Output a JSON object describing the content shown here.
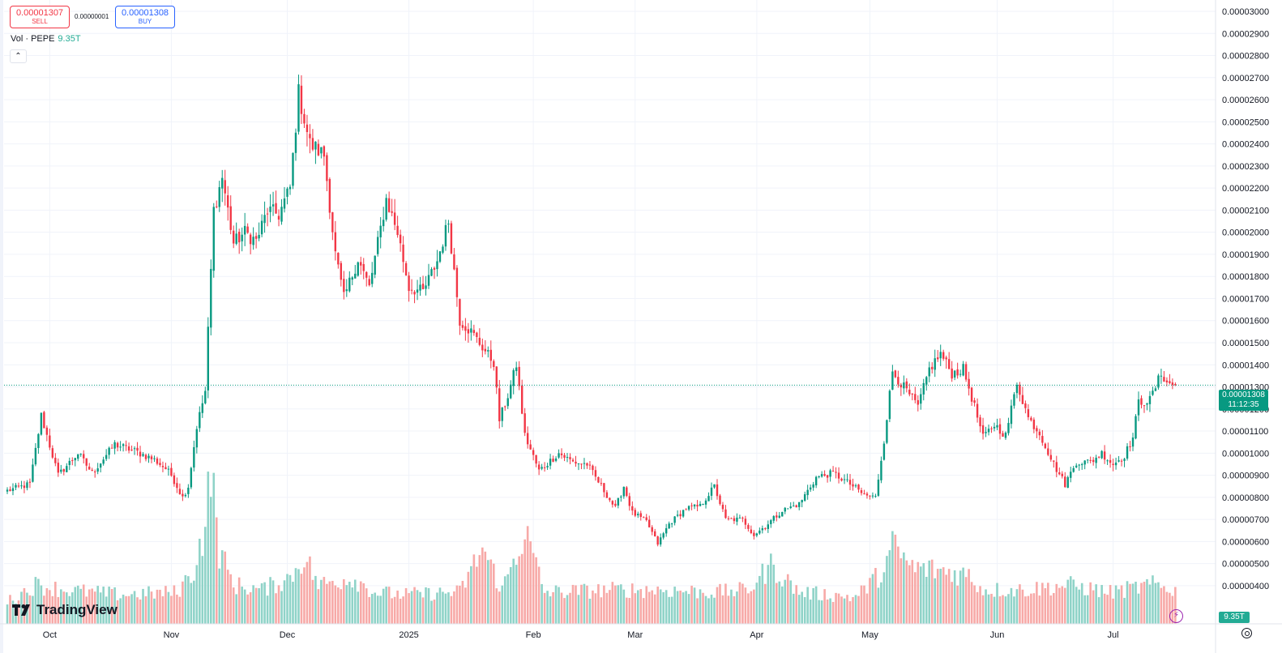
{
  "trade": {
    "sell_price": "0.00001307",
    "sell_label": "SELL",
    "spread": "0.00000001",
    "buy_price": "0.00001308",
    "buy_label": "BUY"
  },
  "volume_legend": {
    "label": "Vol · PEPE",
    "value": "9.35T"
  },
  "price_tag": {
    "price": "0.00001308",
    "countdown": "11:12:35"
  },
  "volume_tag": "9.35T",
  "brand": "TradingView",
  "colors": {
    "up": "#089981",
    "down": "#f23645",
    "up_volume": "#8fd3c8",
    "down_volume": "#f7a9a7",
    "grid": "#f0f3fa",
    "price_line": "#089981"
  },
  "chart_data": {
    "type": "candlestick",
    "symbol": "PEPE",
    "y_axis": {
      "min": 3.3e-06,
      "max": 3e-05,
      "ticks": [
        "0.00003000",
        "0.00002900",
        "0.00002800",
        "0.00002700",
        "0.00002600",
        "0.00002500",
        "0.00002400",
        "0.00002300",
        "0.00002200",
        "0.00002100",
        "0.00002000",
        "0.00001900",
        "0.00001800",
        "0.00001700",
        "0.00001600",
        "0.00001500",
        "0.00001400",
        "0.00001300",
        "0.00001200",
        "0.00001100",
        "0.00001000",
        "0.00000900",
        "0.00000800",
        "0.00000700",
        "0.00000600",
        "0.00000500",
        "0.00000400"
      ]
    },
    "x_axis": {
      "labels": [
        "Oct",
        "Nov",
        "Dec",
        "2025",
        "Feb",
        "Mar",
        "Apr",
        "May",
        "Jun",
        "Jul"
      ]
    },
    "last_price": 1.308e-05,
    "keypoints": [
      {
        "x": 0,
        "close": 8.3
      },
      {
        "x": 8,
        "close": 8.6
      },
      {
        "x": 12,
        "close": 11.7
      },
      {
        "x": 18,
        "close": 9.0
      },
      {
        "x": 25,
        "close": 10.0
      },
      {
        "x": 30,
        "close": 9.1
      },
      {
        "x": 38,
        "close": 10.4
      },
      {
        "x": 45,
        "close": 10.1
      },
      {
        "x": 52,
        "close": 9.7
      },
      {
        "x": 56,
        "close": 9.3
      },
      {
        "x": 58,
        "close": 9.0
      },
      {
        "x": 62,
        "close": 8.0
      },
      {
        "x": 64,
        "close": 8.5
      },
      {
        "x": 67,
        "close": 11.2
      },
      {
        "x": 70,
        "close": 12.8
      },
      {
        "x": 73,
        "close": 21.0
      },
      {
        "x": 76,
        "close": 22.5
      },
      {
        "x": 80,
        "close": 19.5
      },
      {
        "x": 84,
        "close": 20.0
      },
      {
        "x": 88,
        "close": 19.6
      },
      {
        "x": 92,
        "close": 21.0
      },
      {
        "x": 96,
        "close": 20.8
      },
      {
        "x": 100,
        "close": 22.0
      },
      {
        "x": 103,
        "close": 26.3
      },
      {
        "x": 107,
        "close": 24.0
      },
      {
        "x": 112,
        "close": 23.5
      },
      {
        "x": 116,
        "close": 19.0
      },
      {
        "x": 119,
        "close": 17.0
      },
      {
        "x": 124,
        "close": 18.8
      },
      {
        "x": 128,
        "close": 17.5
      },
      {
        "x": 134,
        "close": 21.5
      },
      {
        "x": 138,
        "close": 20.0
      },
      {
        "x": 142,
        "close": 17.5
      },
      {
        "x": 147,
        "close": 17.3
      },
      {
        "x": 152,
        "close": 18.7
      },
      {
        "x": 156,
        "close": 20.5
      },
      {
        "x": 160,
        "close": 16.0
      },
      {
        "x": 164,
        "close": 15.5
      },
      {
        "x": 168,
        "close": 14.8
      },
      {
        "x": 172,
        "close": 14.1
      },
      {
        "x": 174,
        "close": 11.5
      },
      {
        "x": 177,
        "close": 12.6
      },
      {
        "x": 180,
        "close": 14.0
      },
      {
        "x": 183,
        "close": 10.8
      },
      {
        "x": 188,
        "close": 9.2
      },
      {
        "x": 195,
        "close": 10.0
      },
      {
        "x": 200,
        "close": 9.6
      },
      {
        "x": 205,
        "close": 9.5
      },
      {
        "x": 210,
        "close": 8.5
      },
      {
        "x": 215,
        "close": 7.5
      },
      {
        "x": 218,
        "close": 8.5
      },
      {
        "x": 221,
        "close": 7.3
      },
      {
        "x": 226,
        "close": 6.9
      },
      {
        "x": 230,
        "close": 5.9
      },
      {
        "x": 234,
        "close": 6.8
      },
      {
        "x": 240,
        "close": 7.5
      },
      {
        "x": 245,
        "close": 7.6
      },
      {
        "x": 250,
        "close": 8.5
      },
      {
        "x": 254,
        "close": 7.0
      },
      {
        "x": 260,
        "close": 7.0
      },
      {
        "x": 264,
        "close": 6.3
      },
      {
        "x": 268,
        "close": 6.7
      },
      {
        "x": 274,
        "close": 7.4
      },
      {
        "x": 280,
        "close": 7.7
      },
      {
        "x": 286,
        "close": 8.9
      },
      {
        "x": 292,
        "close": 9.1
      },
      {
        "x": 298,
        "close": 8.6
      },
      {
        "x": 303,
        "close": 8.1
      },
      {
        "x": 307,
        "close": 8.0
      },
      {
        "x": 310,
        "close": 10.6
      },
      {
        "x": 313,
        "close": 13.7
      },
      {
        "x": 318,
        "close": 12.8
      },
      {
        "x": 322,
        "close": 12.1
      },
      {
        "x": 326,
        "close": 13.8
      },
      {
        "x": 330,
        "close": 14.5
      },
      {
        "x": 334,
        "close": 13.6
      },
      {
        "x": 338,
        "close": 13.8
      },
      {
        "x": 342,
        "close": 12.1
      },
      {
        "x": 345,
        "close": 10.7
      },
      {
        "x": 349,
        "close": 11.3
      },
      {
        "x": 353,
        "close": 10.8
      },
      {
        "x": 357,
        "close": 13.2
      },
      {
        "x": 361,
        "close": 11.6
      },
      {
        "x": 365,
        "close": 10.9
      },
      {
        "x": 370,
        "close": 9.5
      },
      {
        "x": 374,
        "close": 8.6
      },
      {
        "x": 378,
        "close": 9.6
      },
      {
        "x": 383,
        "close": 9.6
      },
      {
        "x": 387,
        "close": 10.0
      },
      {
        "x": 391,
        "close": 9.5
      },
      {
        "x": 395,
        "close": 9.9
      },
      {
        "x": 398,
        "close": 10.7
      },
      {
        "x": 400,
        "close": 12.3
      },
      {
        "x": 404,
        "close": 12.4
      },
      {
        "x": 408,
        "close": 13.6
      },
      {
        "x": 411,
        "close": 13.1
      },
      {
        "x": 413,
        "close": 13.08
      }
    ],
    "volume_keypoints": [
      {
        "x": 0,
        "v": 0.9
      },
      {
        "x": 10,
        "v": 1.6
      },
      {
        "x": 20,
        "v": 1.4
      },
      {
        "x": 40,
        "v": 1.2
      },
      {
        "x": 60,
        "v": 1.3
      },
      {
        "x": 66,
        "v": 2.2
      },
      {
        "x": 70,
        "v": 4.1
      },
      {
        "x": 72,
        "v": 6.4
      },
      {
        "x": 75,
        "v": 3.0
      },
      {
        "x": 80,
        "v": 1.6
      },
      {
        "x": 90,
        "v": 1.4
      },
      {
        "x": 100,
        "v": 1.9
      },
      {
        "x": 105,
        "v": 2.8
      },
      {
        "x": 110,
        "v": 1.6
      },
      {
        "x": 122,
        "v": 1.9
      },
      {
        "x": 130,
        "v": 1.3
      },
      {
        "x": 140,
        "v": 1.2
      },
      {
        "x": 160,
        "v": 1.3
      },
      {
        "x": 168,
        "v": 3.1
      },
      {
        "x": 175,
        "v": 1.4
      },
      {
        "x": 183,
        "v": 3.8
      },
      {
        "x": 190,
        "v": 1.3
      },
      {
        "x": 215,
        "v": 1.4
      },
      {
        "x": 230,
        "v": 1.4
      },
      {
        "x": 250,
        "v": 1.3
      },
      {
        "x": 262,
        "v": 1.4
      },
      {
        "x": 270,
        "v": 2.4
      },
      {
        "x": 280,
        "v": 1.3
      },
      {
        "x": 300,
        "v": 1.1
      },
      {
        "x": 310,
        "v": 2.2
      },
      {
        "x": 313,
        "v": 3.2
      },
      {
        "x": 320,
        "v": 2.3
      },
      {
        "x": 330,
        "v": 2.2
      },
      {
        "x": 340,
        "v": 2.0
      },
      {
        "x": 345,
        "v": 1.4
      },
      {
        "x": 360,
        "v": 1.4
      },
      {
        "x": 375,
        "v": 1.6
      },
      {
        "x": 390,
        "v": 1.3
      },
      {
        "x": 400,
        "v": 1.5
      },
      {
        "x": 405,
        "v": 1.6
      },
      {
        "x": 413,
        "v": 1.4
      }
    ]
  }
}
